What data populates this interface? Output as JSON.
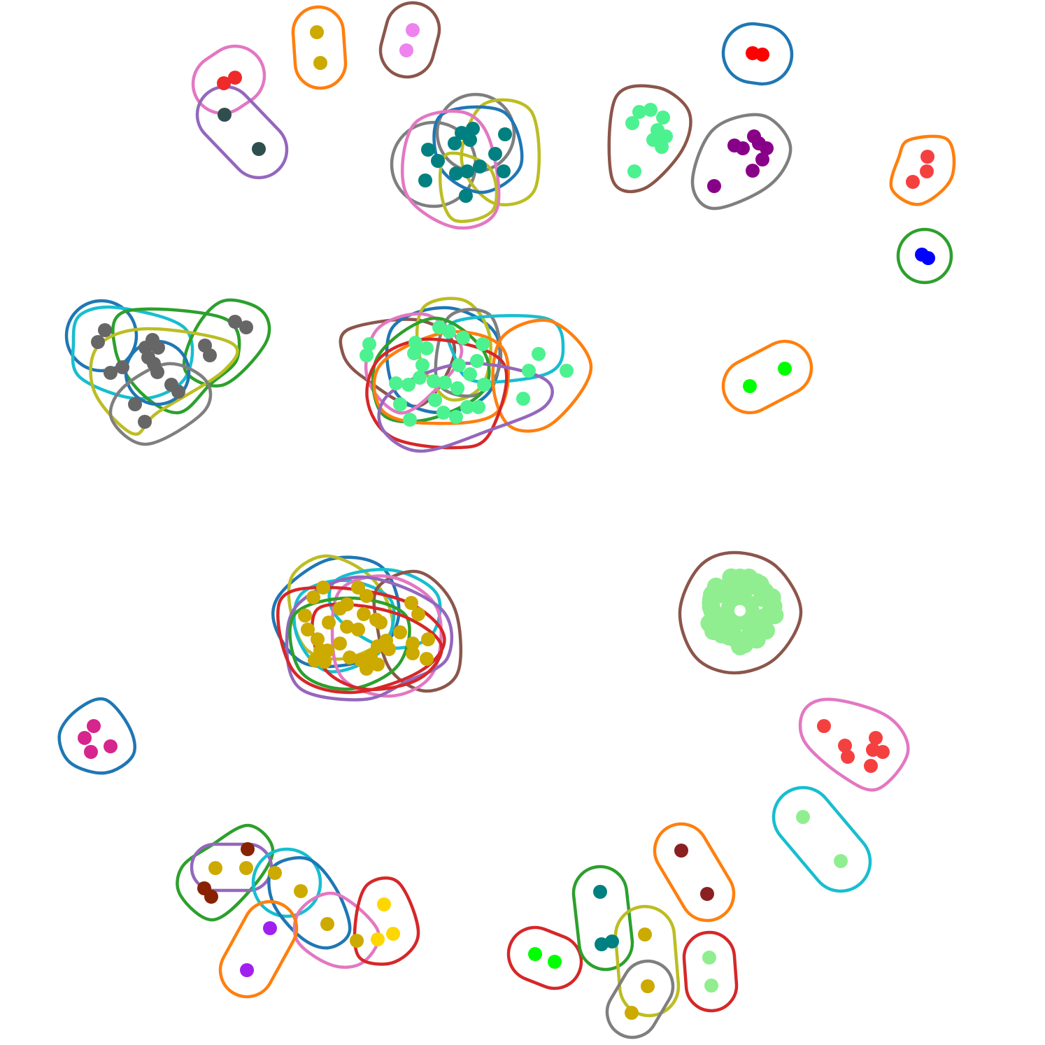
{
  "figure": {
    "type": "hypergraph-cluster-diagram",
    "background": "#ffffff",
    "edge_colors": {
      "blue": "#1f77b4",
      "orange": "#ff7f0e",
      "green": "#2ca02c",
      "red": "#d62728",
      "purple": "#9467bd",
      "brown": "#8c564b",
      "pink": "#e377c2",
      "gray": "#7f7f7f",
      "olive": "#bcbd22",
      "cyan": "#17becf"
    },
    "node_colors": {
      "red": "#ee2a2a",
      "darkslate": "#2f4f4f",
      "gold": "#ccaa00",
      "violet": "#ee82ee",
      "teal": "#008080",
      "mint": "#4cf28f",
      "purple": "#880088",
      "brightred": "#ff0000",
      "salmon": "#f54040",
      "blue": "#0000ff",
      "gray": "#666666",
      "lime": "#00ff00",
      "lightgreen": "#90ee90",
      "magenta": "#d6258c",
      "maroon": "#8b2020",
      "darkred": "#882200",
      "yellow": "#ffd700",
      "violetpurple": "#a020f0"
    },
    "cluster_count": 20
  }
}
